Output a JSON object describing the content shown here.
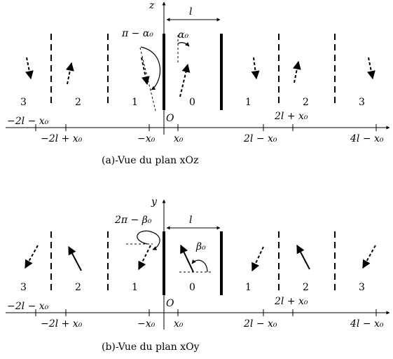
{
  "panel_a": {
    "caption": "(a)-Vue du plan xOz",
    "vertical_axis_label": "z",
    "width_label": "l",
    "origin_label": "O",
    "zone_labels": [
      "3",
      "2",
      "1",
      "0",
      "1",
      "2",
      "3"
    ],
    "x_ticks_upper": [
      "−2l − x₀",
      "2l + x₀"
    ],
    "x_ticks_lower": [
      "−2l + x₀",
      "−x₀",
      "x₀",
      "2l − x₀",
      "4l − x₀"
    ],
    "angle_labels": [
      "π − α₀",
      "α₀"
    ]
  },
  "panel_b": {
    "caption": "(b)-Vue du plan xOy",
    "vertical_axis_label": "y",
    "width_label": "l",
    "origin_label": "O",
    "zone_labels": [
      "3",
      "2",
      "1",
      "0",
      "1",
      "2",
      "3"
    ],
    "x_ticks_upper": [
      "−2l − x₀",
      "2l + x₀"
    ],
    "x_ticks_lower": [
      "−2l + x₀",
      "−x₀",
      "x₀",
      "2l − x₀",
      "4l − x₀"
    ],
    "angle_labels": [
      "2π − β₀",
      "β₀"
    ]
  }
}
